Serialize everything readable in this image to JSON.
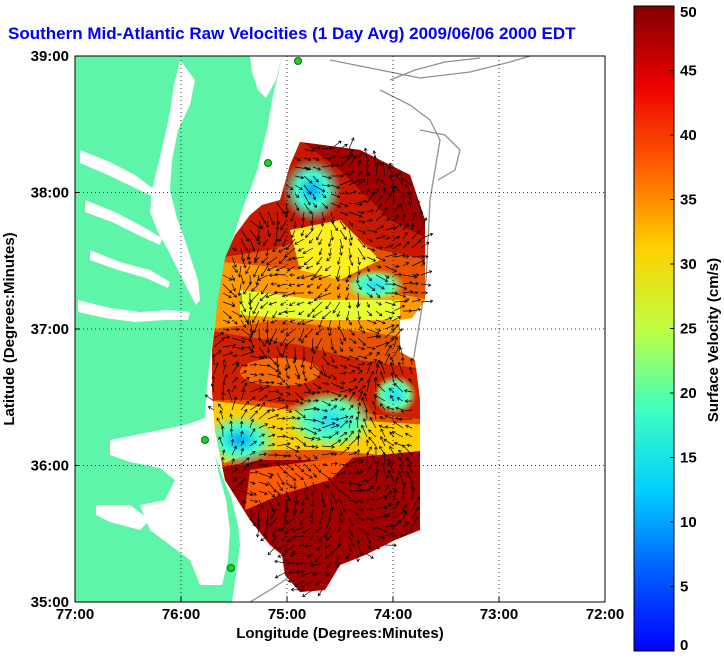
{
  "chart_data": {
    "type": "heatmap",
    "title": "Southern Mid-Atlantic Raw Velocities (1 Day Avg) 2009/06/06 2000 EDT",
    "xlabel": "Longitude (Degrees:Minutes)",
    "ylabel": "Latitude (Degrees:Minutes)",
    "colorbar_label": "Surface Velocity (cm/s)",
    "xlim": [
      -77,
      -72
    ],
    "ylim": [
      35,
      39
    ],
    "x_ticks": [
      {
        "value": -77,
        "label": "77:00"
      },
      {
        "value": -76,
        "label": "76:00"
      },
      {
        "value": -75,
        "label": "75:00"
      },
      {
        "value": -74,
        "label": "74:00"
      },
      {
        "value": -73,
        "label": "73:00"
      },
      {
        "value": -72,
        "label": "72:00"
      }
    ],
    "y_ticks": [
      {
        "value": 35,
        "label": "35:00"
      },
      {
        "value": 36,
        "label": "36:00"
      },
      {
        "value": 37,
        "label": "37:00"
      },
      {
        "value": 38,
        "label": "38:00"
      },
      {
        "value": 39,
        "label": "39:00"
      }
    ],
    "colorbar": {
      "range": [
        0,
        50
      ],
      "ticks": [
        "0",
        "5",
        "10",
        "15",
        "20",
        "25",
        "30",
        "35",
        "40",
        "45",
        "50"
      ]
    },
    "grid": true,
    "colors": {
      "land": "#5ff5a8",
      "water": "#ffffff",
      "title": "#0000ff",
      "grid": "#000000",
      "isobath": "#909090"
    }
  }
}
